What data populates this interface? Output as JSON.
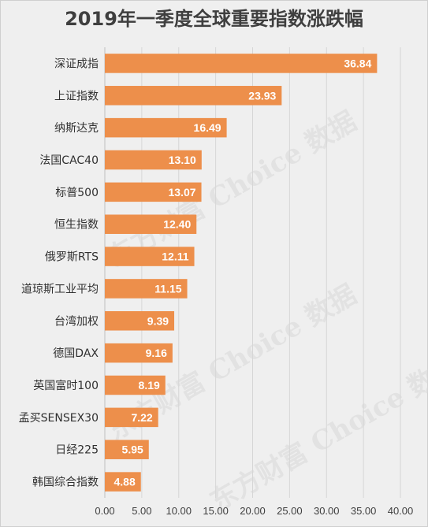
{
  "chart_data": {
    "type": "bar",
    "orientation": "horizontal",
    "title": "2019年一季度全球重要指数涨跌幅",
    "categories": [
      "深证成指",
      "上证指数",
      "纳斯达克",
      "法国CAC40",
      "标普500",
      "恒生指数",
      "俄罗斯RTS",
      "道琼斯工业平均",
      "台湾加权",
      "德国DAX",
      "英国富时100",
      "孟买SENSEX30",
      "日经225",
      "韩国综合指数"
    ],
    "values": [
      36.84,
      23.93,
      16.49,
      13.1,
      13.07,
      12.4,
      12.11,
      11.15,
      9.39,
      9.16,
      8.19,
      7.22,
      5.95,
      4.88
    ],
    "data_labels": [
      "36.84",
      "23.93",
      "16.49",
      "13.10",
      "13.07",
      "12.40",
      "12.11",
      "11.15",
      "9.39",
      "9.16",
      "8.19",
      "7.22",
      "5.95",
      "4.88"
    ],
    "xlim": [
      0,
      40
    ],
    "x_ticks": [
      "0.00",
      "5.00",
      "10.00",
      "15.00",
      "20.00",
      "25.00",
      "30.00",
      "35.00",
      "40.00"
    ],
    "grid": true,
    "bar_color": "#ed8f4b",
    "label_color": "#ffffff",
    "watermark": "东方财富 Choice 数据"
  }
}
